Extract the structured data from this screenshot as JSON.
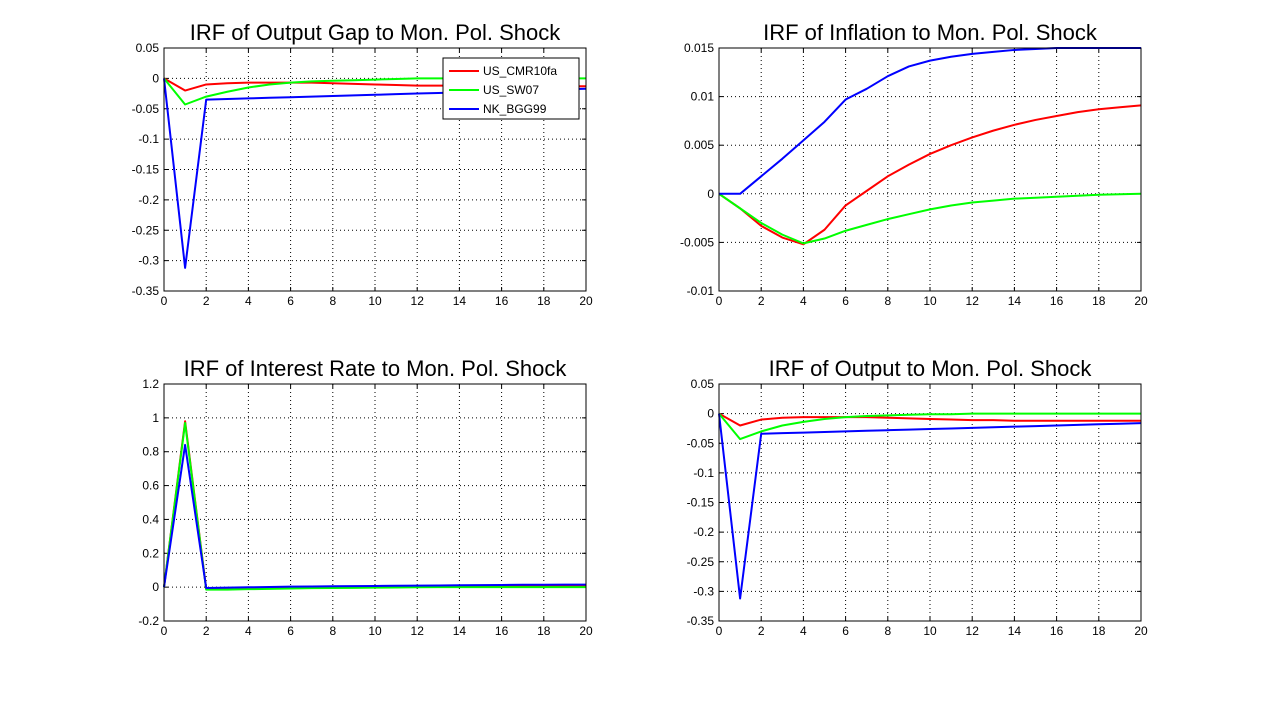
{
  "window": {
    "background": "#ffffff"
  },
  "colors": {
    "US_CMR10fa": "#ff0000",
    "US_SW07": "#00ff00",
    "NK_BGG99": "#0000ff",
    "grid": "#000000",
    "axes": "#000000"
  },
  "legend": {
    "placement": "top-right",
    "entries": [
      "US_CMR10fa",
      "US_SW07",
      "NK_BGG99"
    ]
  },
  "chart_data": [
    {
      "type": "line",
      "title": "IRF of Output Gap to Mon. Pol. Shock",
      "xlabel": "",
      "ylabel": "",
      "xlim": [
        0,
        20
      ],
      "ylim": [
        -0.35,
        0.05
      ],
      "xticks": [
        0,
        2,
        4,
        6,
        8,
        10,
        12,
        14,
        16,
        18,
        20
      ],
      "yticks": [
        -0.35,
        -0.3,
        -0.25,
        -0.2,
        -0.15,
        -0.1,
        -0.05,
        0,
        0.05
      ],
      "xticklabels": [
        "0",
        "2",
        "4",
        "6",
        "8",
        "10",
        "12",
        "14",
        "16",
        "18",
        "20"
      ],
      "yticklabels": [
        "-0.35",
        "-0.3",
        "-0.25",
        "-0.2",
        "-0.15",
        "-0.1",
        "-0.05",
        "0",
        "0.05"
      ],
      "grid": true,
      "legend": true,
      "x": [
        0,
        1,
        2,
        3,
        4,
        5,
        6,
        7,
        8,
        9,
        10,
        11,
        12,
        13,
        14,
        15,
        16,
        17,
        18,
        19,
        20
      ],
      "series": [
        {
          "name": "US_CMR10fa",
          "color": "#ff0000",
          "values": [
            0,
            -0.02,
            -0.01,
            -0.008,
            -0.007,
            -0.007,
            -0.007,
            -0.007,
            -0.008,
            -0.009,
            -0.01,
            -0.011,
            -0.012,
            -0.012,
            -0.012,
            -0.013,
            -0.013,
            -0.013,
            -0.013,
            -0.013,
            -0.013
          ]
        },
        {
          "name": "US_SW07",
          "color": "#00ff00",
          "values": [
            0,
            -0.043,
            -0.03,
            -0.022,
            -0.015,
            -0.01,
            -0.007,
            -0.005,
            -0.004,
            -0.003,
            -0.002,
            -0.001,
            0,
            0,
            0,
            0,
            0,
            0,
            0,
            0,
            0
          ]
        },
        {
          "name": "NK_BGG99",
          "color": "#0000ff",
          "values": [
            0,
            -0.312,
            -0.035,
            -0.034,
            -0.033,
            -0.032,
            -0.031,
            -0.03,
            -0.029,
            -0.028,
            -0.027,
            -0.026,
            -0.025,
            -0.024,
            -0.023,
            -0.022,
            -0.021,
            -0.02,
            -0.019,
            -0.018,
            -0.017
          ]
        }
      ]
    },
    {
      "type": "line",
      "title": "IRF of Inflation to Mon. Pol. Shock",
      "xlabel": "",
      "ylabel": "",
      "xlim": [
        0,
        20
      ],
      "ylim": [
        -0.01,
        0.015
      ],
      "xticks": [
        0,
        2,
        4,
        6,
        8,
        10,
        12,
        14,
        16,
        18,
        20
      ],
      "yticks": [
        -0.01,
        -0.005,
        0,
        0.005,
        0.01,
        0.015
      ],
      "xticklabels": [
        "0",
        "2",
        "4",
        "6",
        "8",
        "10",
        "12",
        "14",
        "16",
        "18",
        "20"
      ],
      "yticklabels": [
        "-0.01",
        "-0.005",
        "0",
        "0.005",
        "0.01",
        "0.015"
      ],
      "grid": true,
      "legend": false,
      "x": [
        0,
        1,
        2,
        3,
        4,
        5,
        6,
        7,
        8,
        9,
        10,
        11,
        12,
        13,
        14,
        15,
        16,
        17,
        18,
        19,
        20
      ],
      "series": [
        {
          "name": "US_CMR10fa",
          "color": "#ff0000",
          "values": [
            0,
            -0.0015,
            -0.0033,
            -0.0045,
            -0.0052,
            -0.0037,
            -0.0012,
            0.0003,
            0.0018,
            0.003,
            0.0041,
            0.005,
            0.0058,
            0.0065,
            0.0071,
            0.0076,
            0.008,
            0.0084,
            0.0087,
            0.0089,
            0.0091
          ]
        },
        {
          "name": "US_SW07",
          "color": "#00ff00",
          "values": [
            0,
            -0.0015,
            -0.003,
            -0.0042,
            -0.0051,
            -0.0046,
            -0.0038,
            -0.0032,
            -0.0026,
            -0.0021,
            -0.0016,
            -0.0012,
            -0.0009,
            -0.0007,
            -0.0005,
            -0.0004,
            -0.0003,
            -0.0002,
            -0.0001,
            -5e-05,
            0
          ]
        },
        {
          "name": "NK_BGG99",
          "color": "#0000ff",
          "values": [
            0,
            0,
            0.0018,
            0.0036,
            0.0055,
            0.0074,
            0.0097,
            0.0108,
            0.0121,
            0.0131,
            0.0137,
            0.0141,
            0.0144,
            0.0146,
            0.0148,
            0.0149,
            0.015,
            0.015,
            0.015,
            0.015,
            0.015
          ]
        }
      ]
    },
    {
      "type": "line",
      "title": "IRF of Interest Rate to Mon. Pol. Shock",
      "xlabel": "",
      "ylabel": "",
      "xlim": [
        0,
        20
      ],
      "ylim": [
        -0.2,
        1.2
      ],
      "xticks": [
        0,
        2,
        4,
        6,
        8,
        10,
        12,
        14,
        16,
        18,
        20
      ],
      "yticks": [
        -0.2,
        0,
        0.2,
        0.4,
        0.6,
        0.8,
        1,
        1.2
      ],
      "xticklabels": [
        "0",
        "2",
        "4",
        "6",
        "8",
        "10",
        "12",
        "14",
        "16",
        "18",
        "20"
      ],
      "yticklabels": [
        "-0.2",
        "0",
        "0.2",
        "0.4",
        "0.6",
        "0.8",
        "1",
        "1.2"
      ],
      "grid": true,
      "legend": false,
      "x": [
        0,
        1,
        2,
        3,
        4,
        5,
        6,
        7,
        8,
        9,
        10,
        11,
        12,
        13,
        14,
        15,
        16,
        17,
        18,
        19,
        20
      ],
      "series": [
        {
          "name": "US_CMR10fa",
          "color": "#ff0000",
          "values": [
            0,
            0.98,
            -0.01,
            -0.008,
            -0.006,
            -0.004,
            -0.002,
            0,
            0.001,
            0.002,
            0.003,
            0.004,
            0.004,
            0.005,
            0.005,
            0.005,
            0.006,
            0.006,
            0.006,
            0.006,
            0.006
          ]
        },
        {
          "name": "US_SW07",
          "color": "#00ff00",
          "values": [
            0,
            0.97,
            -0.015,
            -0.015,
            -0.012,
            -0.01,
            -0.008,
            -0.006,
            -0.005,
            -0.004,
            -0.003,
            -0.002,
            -0.001,
            0,
            0,
            0,
            0,
            0,
            0,
            0,
            0
          ]
        },
        {
          "name": "NK_BGG99",
          "color": "#0000ff",
          "values": [
            0,
            0.84,
            -0.005,
            -0.003,
            -0.001,
            0.001,
            0.003,
            0.004,
            0.005,
            0.006,
            0.007,
            0.008,
            0.009,
            0.01,
            0.011,
            0.012,
            0.013,
            0.014,
            0.014,
            0.015,
            0.015
          ]
        }
      ]
    },
    {
      "type": "line",
      "title": "IRF of Output to Mon. Pol. Shock",
      "xlabel": "",
      "ylabel": "",
      "xlim": [
        0,
        20
      ],
      "ylim": [
        -0.35,
        0.05
      ],
      "xticks": [
        0,
        2,
        4,
        6,
        8,
        10,
        12,
        14,
        16,
        18,
        20
      ],
      "yticks": [
        -0.35,
        -0.3,
        -0.25,
        -0.2,
        -0.15,
        -0.1,
        -0.05,
        0,
        0.05
      ],
      "xticklabels": [
        "0",
        "2",
        "4",
        "6",
        "8",
        "10",
        "12",
        "14",
        "16",
        "18",
        "20"
      ],
      "yticklabels": [
        "-0.35",
        "-0.3",
        "-0.25",
        "-0.2",
        "-0.15",
        "-0.1",
        "-0.05",
        "0",
        "0.05"
      ],
      "grid": true,
      "legend": false,
      "x": [
        0,
        1,
        2,
        3,
        4,
        5,
        6,
        7,
        8,
        9,
        10,
        11,
        12,
        13,
        14,
        15,
        16,
        17,
        18,
        19,
        20
      ],
      "series": [
        {
          "name": "US_CMR10fa",
          "color": "#ff0000",
          "values": [
            0,
            -0.02,
            -0.01,
            -0.007,
            -0.006,
            -0.006,
            -0.006,
            -0.006,
            -0.007,
            -0.008,
            -0.009,
            -0.01,
            -0.011,
            -0.011,
            -0.012,
            -0.012,
            -0.012,
            -0.012,
            -0.012,
            -0.012,
            -0.012
          ]
        },
        {
          "name": "US_SW07",
          "color": "#00ff00",
          "values": [
            0,
            -0.043,
            -0.03,
            -0.02,
            -0.014,
            -0.009,
            -0.006,
            -0.004,
            -0.003,
            -0.002,
            -0.001,
            -0.001,
            0,
            0,
            0,
            0,
            0,
            0,
            0,
            0,
            0
          ]
        },
        {
          "name": "NK_BGG99",
          "color": "#0000ff",
          "values": [
            0,
            -0.312,
            -0.034,
            -0.033,
            -0.032,
            -0.031,
            -0.03,
            -0.029,
            -0.028,
            -0.027,
            -0.026,
            -0.025,
            -0.024,
            -0.023,
            -0.022,
            -0.021,
            -0.02,
            -0.019,
            -0.018,
            -0.017,
            -0.016
          ]
        }
      ]
    }
  ]
}
